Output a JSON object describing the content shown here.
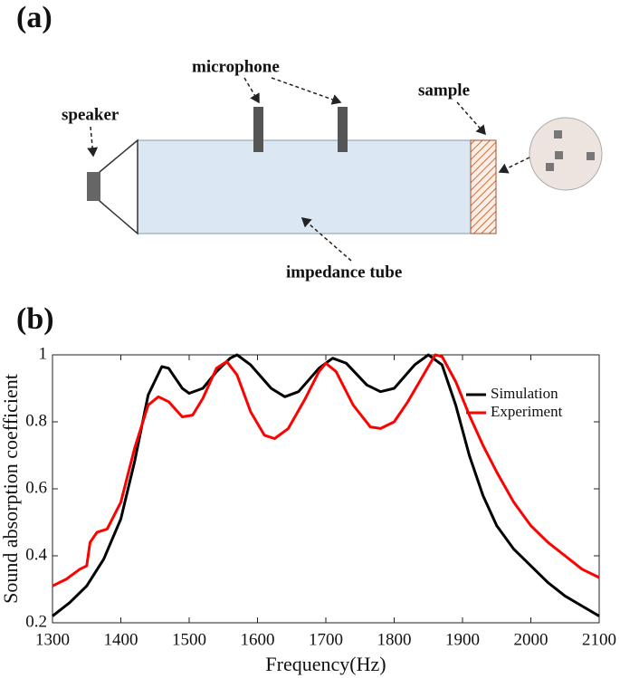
{
  "diagram": {
    "panel_label": "(a)",
    "labels": {
      "microphone": "microphone",
      "speaker": "speaker",
      "sample": "sample",
      "tube": "impedance tube"
    }
  },
  "chart_data": {
    "type": "line",
    "panel_label": "(b)",
    "xlabel": "Frequency(Hz)",
    "ylabel": "Sound absorption coefficient",
    "xlim": [
      1300,
      2100
    ],
    "xticks": [
      1300,
      1400,
      1500,
      1600,
      1700,
      1800,
      1900,
      2000,
      2100
    ],
    "ylim": [
      0.2,
      1
    ],
    "yticks": [
      0.2,
      0.4,
      0.6,
      0.8,
      1
    ],
    "legend": "upper right",
    "series": [
      {
        "name": "Simulation",
        "color": "#000000",
        "x": [
          1300,
          1325,
          1350,
          1375,
          1400,
          1420,
          1440,
          1460,
          1470,
          1490,
          1500,
          1520,
          1540,
          1560,
          1570,
          1590,
          1620,
          1640,
          1660,
          1690,
          1710,
          1730,
          1760,
          1780,
          1800,
          1830,
          1850,
          1870,
          1890,
          1910,
          1930,
          1950,
          1975,
          2000,
          2025,
          2050,
          2075,
          2100
        ],
        "values": [
          0.22,
          0.26,
          0.31,
          0.39,
          0.51,
          0.68,
          0.88,
          0.965,
          0.96,
          0.9,
          0.885,
          0.9,
          0.95,
          0.99,
          1.0,
          0.97,
          0.9,
          0.875,
          0.89,
          0.96,
          0.99,
          0.975,
          0.91,
          0.89,
          0.9,
          0.97,
          1.0,
          0.97,
          0.85,
          0.7,
          0.58,
          0.49,
          0.42,
          0.37,
          0.32,
          0.28,
          0.25,
          0.22
        ]
      },
      {
        "name": "Experiment",
        "color": "#ff0000",
        "x": [
          1300,
          1320,
          1340,
          1350,
          1355,
          1365,
          1380,
          1400,
          1420,
          1440,
          1455,
          1470,
          1490,
          1505,
          1520,
          1540,
          1555,
          1570,
          1590,
          1610,
          1625,
          1645,
          1670,
          1690,
          1700,
          1715,
          1740,
          1765,
          1780,
          1800,
          1820,
          1840,
          1860,
          1870,
          1890,
          1910,
          1930,
          1950,
          1975,
          2000,
          2025,
          2050,
          2075,
          2100
        ],
        "values": [
          0.31,
          0.33,
          0.36,
          0.37,
          0.44,
          0.47,
          0.48,
          0.56,
          0.72,
          0.85,
          0.875,
          0.86,
          0.815,
          0.82,
          0.87,
          0.96,
          0.98,
          0.94,
          0.83,
          0.76,
          0.75,
          0.78,
          0.87,
          0.95,
          0.975,
          0.95,
          0.85,
          0.785,
          0.78,
          0.8,
          0.86,
          0.93,
          1.0,
          0.995,
          0.92,
          0.82,
          0.73,
          0.65,
          0.56,
          0.49,
          0.44,
          0.4,
          0.36,
          0.335
        ]
      }
    ]
  }
}
